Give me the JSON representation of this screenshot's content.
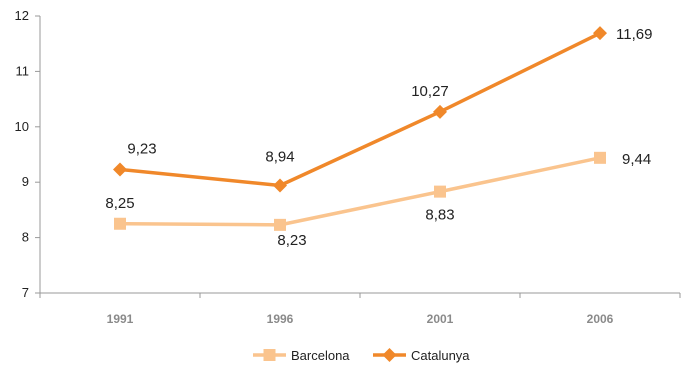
{
  "chart_data": {
    "type": "line",
    "categories": [
      "1991",
      "1996",
      "2001",
      "2006"
    ],
    "ylim": [
      7,
      12
    ],
    "yticks": [
      "7",
      "8",
      "9",
      "10",
      "11",
      "12"
    ],
    "grid": false,
    "legend_position": "bottom",
    "series": [
      {
        "name": "Barcelona",
        "values": [
          8.25,
          8.23,
          8.83,
          9.44
        ],
        "labels": [
          "8,25",
          "8,23",
          "8,83",
          "9,44"
        ],
        "color": "#fac48e",
        "marker": "square"
      },
      {
        "name": "Catalunya",
        "values": [
          9.23,
          8.94,
          10.27,
          11.69
        ],
        "labels": [
          "9,23",
          "8,94",
          "10,27",
          "11,69"
        ],
        "color": "#f0882a",
        "marker": "diamond"
      }
    ]
  }
}
